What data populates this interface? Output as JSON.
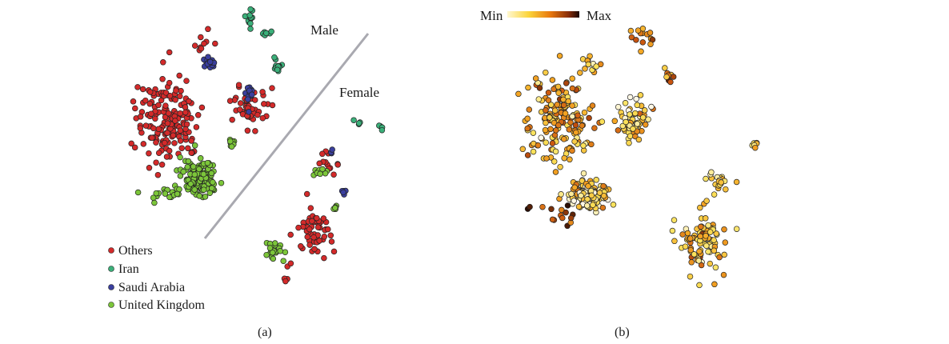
{
  "chart_data": [
    {
      "type": "scatter",
      "caption": "(a)",
      "annotations": [
        "Male",
        "Female"
      ],
      "legend": {
        "placement": "bottom-left",
        "entries": [
          {
            "name": "Others",
            "color": "#d42a2a"
          },
          {
            "name": "Iran",
            "color": "#3bb07a"
          },
          {
            "name": "Saudi Arabia",
            "color": "#3a3f9e"
          },
          {
            "name": "United Kingdom",
            "color": "#7cc63a"
          }
        ]
      },
      "series": [
        {
          "name": "Others",
          "color": "#d42a2a",
          "clusters": [
            {
              "cx": 210,
              "cy": 150,
              "rx": 40,
              "ry": 55,
              "n": 170
            },
            {
              "cx": 250,
              "cy": 55,
              "rx": 22,
              "ry": 18,
              "n": 10
            },
            {
              "cx": 310,
              "cy": 135,
              "rx": 22,
              "ry": 25,
              "n": 45
            },
            {
              "cx": 395,
              "cy": 290,
              "rx": 22,
              "ry": 28,
              "n": 55
            },
            {
              "cx": 410,
              "cy": 205,
              "rx": 15,
              "ry": 12,
              "n": 12
            },
            {
              "cx": 360,
              "cy": 340,
              "rx": 10,
              "ry": 12,
              "n": 5
            }
          ]
        },
        {
          "name": "Iran",
          "color": "#3bb07a",
          "clusters": [
            {
              "cx": 312,
              "cy": 22,
              "rx": 7,
              "ry": 12,
              "n": 12
            },
            {
              "cx": 328,
              "cy": 42,
              "rx": 10,
              "ry": 2,
              "n": 6
            },
            {
              "cx": 347,
              "cy": 80,
              "rx": 6,
              "ry": 9,
              "n": 12
            },
            {
              "cx": 450,
              "cy": 153,
              "rx": 8,
              "ry": 3,
              "n": 4
            },
            {
              "cx": 476,
              "cy": 160,
              "rx": 3,
              "ry": 5,
              "n": 4
            }
          ]
        },
        {
          "name": "Saudi Arabia",
          "color": "#3a3f9e",
          "clusters": [
            {
              "cx": 262,
              "cy": 78,
              "rx": 9,
              "ry": 12,
              "n": 18
            },
            {
              "cx": 312,
              "cy": 117,
              "rx": 5,
              "ry": 14,
              "n": 15
            },
            {
              "cx": 430,
              "cy": 240,
              "rx": 4,
              "ry": 5,
              "n": 5
            },
            {
              "cx": 415,
              "cy": 190,
              "rx": 3,
              "ry": 4,
              "n": 3
            }
          ]
        },
        {
          "name": "United Kingdom",
          "color": "#7cc63a",
          "clusters": [
            {
              "cx": 250,
              "cy": 222,
              "rx": 22,
              "ry": 20,
              "n": 150
            },
            {
              "cx": 205,
              "cy": 240,
              "rx": 28,
              "ry": 12,
              "n": 20
            },
            {
              "cx": 290,
              "cy": 178,
              "rx": 6,
              "ry": 6,
              "n": 8
            },
            {
              "cx": 400,
              "cy": 216,
              "rx": 10,
              "ry": 4,
              "n": 10
            },
            {
              "cx": 340,
              "cy": 312,
              "rx": 14,
              "ry": 14,
              "n": 22
            },
            {
              "cx": 418,
              "cy": 258,
              "rx": 5,
              "ry": 4,
              "n": 5
            }
          ]
        }
      ]
    },
    {
      "type": "scatter",
      "caption": "(b)",
      "colorbar": {
        "min_label": "Min",
        "max_label": "Max"
      },
      "color_scale": [
        "#fff8e6",
        "#fbe25a",
        "#f5a623",
        "#c8520e",
        "#2a0d05"
      ],
      "clusters": [
        {
          "cx": 700,
          "cy": 150,
          "rx": 42,
          "ry": 55,
          "n": 170,
          "level": 0.45
        },
        {
          "cx": 735,
          "cy": 245,
          "rx": 24,
          "ry": 18,
          "n": 150,
          "level": 0.25
        },
        {
          "cx": 790,
          "cy": 150,
          "rx": 20,
          "ry": 26,
          "n": 60,
          "level": 0.35
        },
        {
          "cx": 805,
          "cy": 45,
          "rx": 14,
          "ry": 14,
          "n": 14,
          "level": 0.55
        },
        {
          "cx": 835,
          "cy": 95,
          "rx": 6,
          "ry": 10,
          "n": 10,
          "level": 0.55
        },
        {
          "cx": 880,
          "cy": 300,
          "rx": 30,
          "ry": 38,
          "n": 90,
          "level": 0.35
        },
        {
          "cx": 900,
          "cy": 225,
          "rx": 16,
          "ry": 16,
          "n": 20,
          "level": 0.3
        },
        {
          "cx": 690,
          "cy": 268,
          "rx": 25,
          "ry": 15,
          "n": 15,
          "level": 0.8
        },
        {
          "cx": 735,
          "cy": 80,
          "rx": 12,
          "ry": 10,
          "n": 12,
          "level": 0.3
        },
        {
          "cx": 945,
          "cy": 182,
          "rx": 15,
          "ry": 5,
          "n": 6,
          "level": 0.45
        }
      ]
    }
  ]
}
